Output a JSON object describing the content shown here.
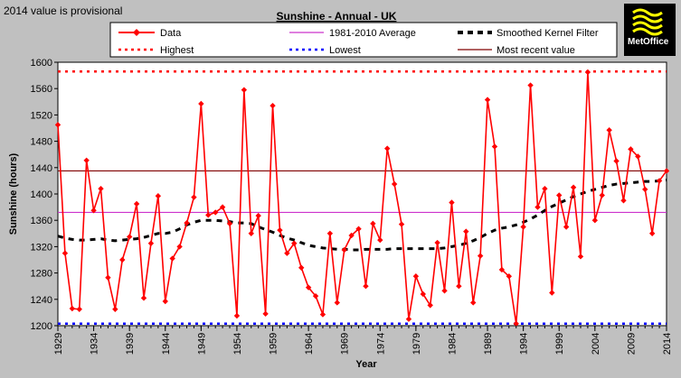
{
  "chart_data": {
    "type": "line",
    "title": "Sunshine - Annual - UK",
    "note": "2014 value is provisional",
    "xlabel": "Year",
    "ylabel": "Sunshine (hours)",
    "xlim": [
      1929,
      2014
    ],
    "ylim": [
      1200,
      1600
    ],
    "yticks": [
      1200,
      1240,
      1280,
      1320,
      1360,
      1400,
      1440,
      1480,
      1520,
      1560,
      1600
    ],
    "xticks": [
      1929,
      1934,
      1939,
      1944,
      1949,
      1954,
      1959,
      1964,
      1969,
      1974,
      1979,
      1984,
      1989,
      1994,
      1999,
      2004,
      2009,
      2014
    ],
    "x": [
      1929,
      1930,
      1931,
      1932,
      1933,
      1934,
      1935,
      1936,
      1937,
      1938,
      1939,
      1940,
      1941,
      1942,
      1943,
      1944,
      1945,
      1946,
      1947,
      1948,
      1949,
      1950,
      1951,
      1952,
      1953,
      1954,
      1955,
      1956,
      1957,
      1958,
      1959,
      1960,
      1961,
      1962,
      1963,
      1964,
      1965,
      1966,
      1967,
      1968,
      1969,
      1970,
      1971,
      1972,
      1973,
      1974,
      1975,
      1976,
      1977,
      1978,
      1979,
      1980,
      1981,
      1982,
      1983,
      1984,
      1985,
      1986,
      1987,
      1988,
      1989,
      1990,
      1991,
      1992,
      1993,
      1994,
      1995,
      1996,
      1997,
      1998,
      1999,
      2000,
      2001,
      2002,
      2003,
      2004,
      2005,
      2006,
      2007,
      2008,
      2009,
      2010,
      2011,
      2012,
      2013,
      2014
    ],
    "series": [
      {
        "name": "Data",
        "color": "#ff0000",
        "values": [
          1505,
          1310,
          1226,
          1225,
          1451,
          1375,
          1408,
          1273,
          1225,
          1300,
          1335,
          1385,
          1242,
          1325,
          1397,
          1237,
          1302,
          1320,
          1356,
          1395,
          1537,
          1368,
          1372,
          1380,
          1355,
          1215,
          1558,
          1340,
          1367,
          1218,
          1534,
          1345,
          1310,
          1325,
          1288,
          1258,
          1245,
          1217,
          1340,
          1235,
          1315,
          1337,
          1347,
          1260,
          1355,
          1330,
          1469,
          1415,
          1354,
          1210,
          1275,
          1248,
          1231,
          1326,
          1253,
          1387,
          1260,
          1343,
          1235,
          1306,
          1543,
          1472,
          1285,
          1275,
          1203,
          1350,
          1565,
          1380,
          1408,
          1250,
          1398,
          1350,
          1410,
          1305,
          1585,
          1360,
          1398,
          1497,
          1450,
          1390,
          1468,
          1457,
          1407,
          1340,
          1420,
          1435
        ]
      },
      {
        "name": "Smoothed Kernel Filter",
        "color": "#000000",
        "values": [
          1336,
          1333,
          1331,
          1330,
          1330,
          1331,
          1332,
          1330,
          1329,
          1330,
          1331,
          1332,
          1334,
          1337,
          1340,
          1340,
          1342,
          1347,
          1353,
          1357,
          1360,
          1360,
          1360,
          1359,
          1358,
          1356,
          1356,
          1355,
          1350,
          1346,
          1342,
          1337,
          1333,
          1330,
          1326,
          1322,
          1320,
          1318,
          1317,
          1316,
          1316,
          1315,
          1315,
          1316,
          1316,
          1316,
          1316,
          1317,
          1317,
          1317,
          1317,
          1317,
          1317,
          1317,
          1318,
          1320,
          1322,
          1325,
          1329,
          1334,
          1340,
          1345,
          1348,
          1350,
          1353,
          1357,
          1362,
          1368,
          1375,
          1381,
          1386,
          1391,
          1396,
          1400,
          1404,
          1407,
          1410,
          1413,
          1415,
          1416,
          1417,
          1418,
          1419,
          1419,
          1420,
          1421
        ]
      }
    ],
    "reference_lines": [
      {
        "name": "1981-2010 Average",
        "value": 1372,
        "color": "#cc33cc",
        "style": "solid"
      },
      {
        "name": "Highest",
        "value": 1586,
        "color": "#ff0000",
        "style": "dashed"
      },
      {
        "name": "Lowest",
        "value": 1203,
        "color": "#0000ff",
        "style": "dashed"
      },
      {
        "name": "Most recent value",
        "value": 1435,
        "color": "#800000",
        "style": "solid"
      }
    ],
    "legend": {
      "placement": "top",
      "entries": [
        "Data",
        "1981-2010 Average",
        "Smoothed Kernel Filter",
        "Highest",
        "Lowest",
        "Most recent value"
      ]
    }
  },
  "logo": {
    "text_line1": "Met",
    "text_line2": "Office"
  }
}
